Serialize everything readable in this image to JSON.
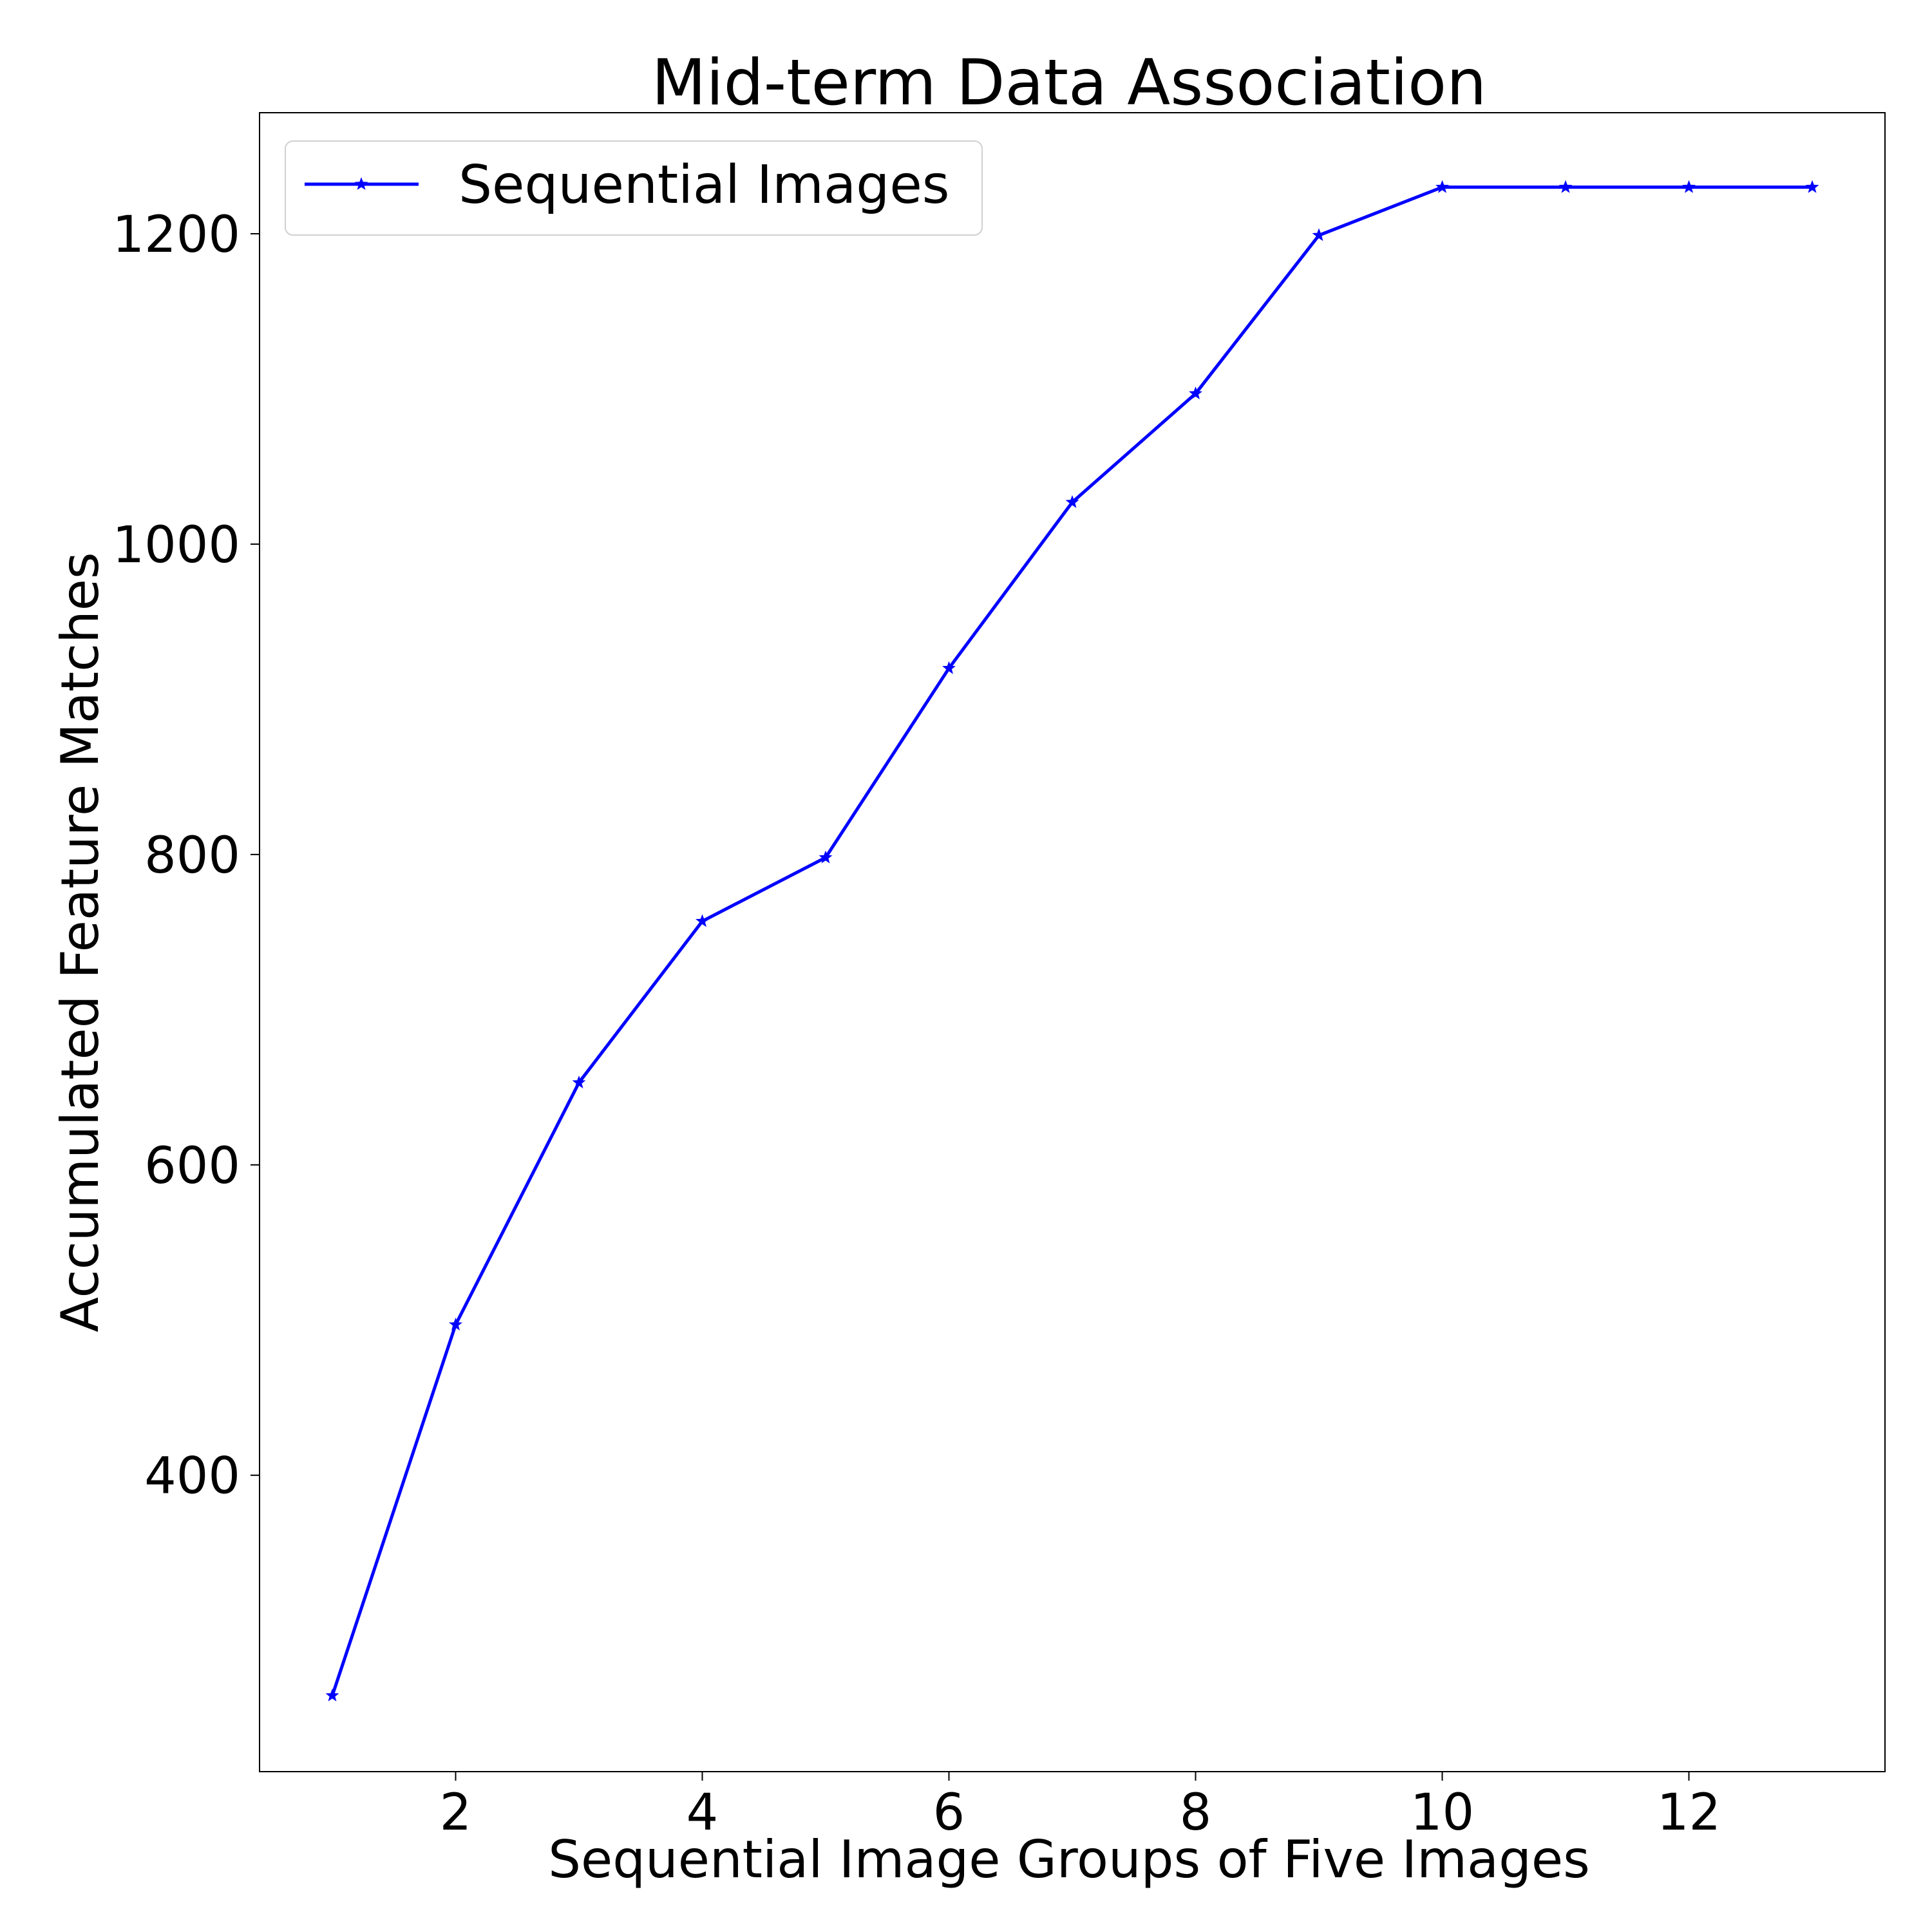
{
  "chart_data": {
    "type": "line",
    "title": "Mid-term Data Association",
    "xlabel": "Sequential Image Groups of Five Images",
    "ylabel": "Accumulated Feature Matches",
    "xlim": [
      0.41,
      13.59
    ],
    "ylim": [
      209,
      1278
    ],
    "xticks": [
      2,
      4,
      6,
      8,
      10,
      12
    ],
    "xtick_labels": [
      "2",
      "4",
      "6",
      "8",
      "10",
      "12"
    ],
    "yticks": [
      400,
      600,
      800,
      1000,
      1200
    ],
    "ytick_labels": [
      "400",
      "600",
      "800",
      "1000",
      "1200"
    ],
    "grid": false,
    "legend": {
      "position": "top-left",
      "entries": [
        "Sequential Images"
      ]
    },
    "series": [
      {
        "name": "Sequential Images",
        "color": "#0000ff",
        "marker": "star",
        "x": [
          1,
          2,
          3,
          4,
          5,
          6,
          7,
          8,
          9,
          10,
          11,
          12,
          13
        ],
        "y": [
          258,
          497,
          653,
          757,
          798,
          920,
          1027,
          1097,
          1199,
          1230,
          1230,
          1230,
          1230
        ]
      }
    ]
  }
}
